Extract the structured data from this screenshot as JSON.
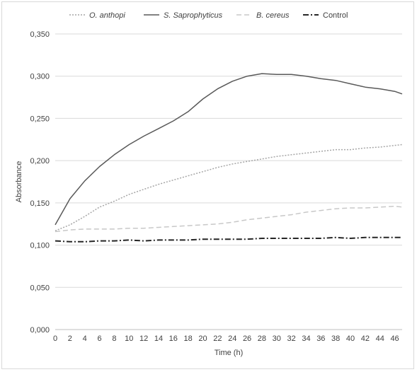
{
  "chart_data": {
    "type": "line",
    "title": "",
    "xlabel": "Time (h)",
    "ylabel": "Absorbance",
    "xlim": [
      0,
      47
    ],
    "ylim": [
      0,
      0.35
    ],
    "x_ticks": [
      "0",
      "2",
      "4",
      "6",
      "8",
      "10",
      "12",
      "14",
      "16",
      "18",
      "20",
      "22",
      "24",
      "26",
      "28",
      "30",
      "32",
      "34",
      "36",
      "38",
      "40",
      "42",
      "44",
      "46"
    ],
    "y_ticks": [
      "0,000",
      "0,050",
      "0,100",
      "0,150",
      "0,200",
      "0,250",
      "0,300",
      "0,350"
    ],
    "y_tick_values": [
      0,
      0.05,
      0.1,
      0.15,
      0.2,
      0.25,
      0.3,
      0.35
    ],
    "grid": "horizontal",
    "legend_position": "top",
    "x": [
      0,
      2,
      4,
      6,
      8,
      10,
      12,
      14,
      16,
      18,
      20,
      22,
      24,
      26,
      28,
      30,
      32,
      34,
      36,
      38,
      40,
      42,
      44,
      46,
      47
    ],
    "series": [
      {
        "name": "O. anthopi",
        "italic": true,
        "color": "#a6a6a6",
        "dash": "dotted",
        "values": [
          0.117,
          0.124,
          0.134,
          0.145,
          0.152,
          0.16,
          0.166,
          0.172,
          0.177,
          0.182,
          0.187,
          0.192,
          0.196,
          0.199,
          0.202,
          0.205,
          0.207,
          0.209,
          0.211,
          0.213,
          0.213,
          0.215,
          0.216,
          0.218,
          0.219
        ]
      },
      {
        "name": "S. Saprophyticus",
        "italic": true,
        "color": "#595959",
        "dash": "solid",
        "values": [
          0.124,
          0.155,
          0.176,
          0.193,
          0.207,
          0.219,
          0.229,
          0.238,
          0.247,
          0.258,
          0.273,
          0.285,
          0.294,
          0.3,
          0.303,
          0.302,
          0.302,
          0.3,
          0.297,
          0.295,
          0.291,
          0.287,
          0.285,
          0.282,
          0.279
        ]
      },
      {
        "name": "B. cereus",
        "italic": true,
        "color": "#c8c8c8",
        "dash": "dashed",
        "values": [
          0.116,
          0.118,
          0.119,
          0.119,
          0.119,
          0.12,
          0.12,
          0.121,
          0.122,
          0.123,
          0.124,
          0.125,
          0.127,
          0.13,
          0.132,
          0.134,
          0.136,
          0.139,
          0.141,
          0.143,
          0.144,
          0.144,
          0.145,
          0.146,
          0.145
        ]
      },
      {
        "name": "Control",
        "italic": false,
        "color": "#262626",
        "dash": "dashdot",
        "values": [
          0.105,
          0.104,
          0.104,
          0.105,
          0.105,
          0.106,
          0.105,
          0.106,
          0.106,
          0.106,
          0.107,
          0.107,
          0.107,
          0.107,
          0.108,
          0.108,
          0.108,
          0.108,
          0.108,
          0.109,
          0.108,
          0.109,
          0.109,
          0.109,
          0.109
        ]
      }
    ]
  }
}
